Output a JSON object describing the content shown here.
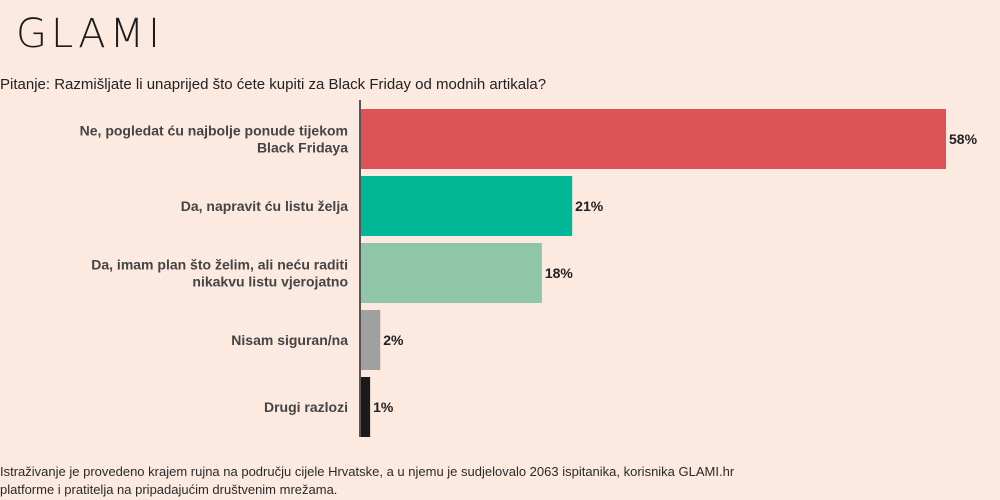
{
  "brand": {
    "logo_text": "GLAMI"
  },
  "question": "Pitanje: Razmišljate li unaprijed što ćete kupiti za Black Friday od modnih artikala?",
  "footnote": "Istraživanje je provedeno krajem rujna na području cijele Hrvatske, a u njemu je sudjelovalo 2063 ispitanika, korisnika GLAMI.hr platforme i pratitelja na pripadajućim društvenim mrežama.",
  "chart_data": {
    "type": "bar",
    "orientation": "horizontal",
    "unit": "%",
    "categories": [
      [
        "Ne, pogledat ću najbolje ponude tijekom",
        "Black Fridaya"
      ],
      [
        "Da, napravit ću listu želja"
      ],
      [
        "Da, imam plan što želim, ali neću raditi",
        "nikakvu listu vjerojatno"
      ],
      [
        "Nisam siguran/na"
      ],
      [
        "Drugi razlozi"
      ]
    ],
    "values": [
      58,
      21,
      18,
      2,
      1
    ],
    "value_labels": [
      "58%",
      "21%",
      "18%",
      "2%",
      "1%"
    ],
    "colors": [
      "#dc5456",
      "#00b896",
      "#8fc5a9",
      "#a0a0a0",
      "#1a1a1a"
    ],
    "xlim": [
      0,
      58
    ],
    "axis_color": "#555555",
    "grid": false,
    "legend": false
  }
}
